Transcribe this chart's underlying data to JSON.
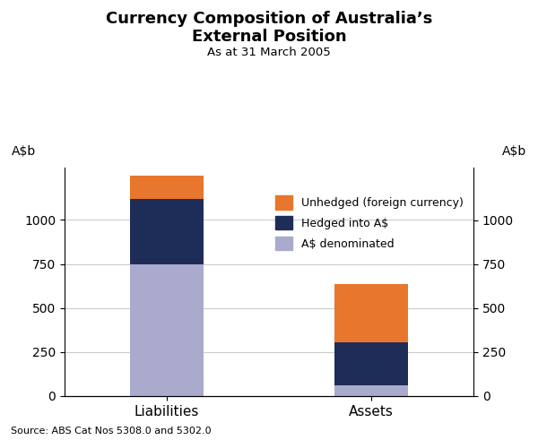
{
  "categories": [
    "Liabilities",
    "Assets"
  ],
  "aud_denominated": [
    750,
    60
  ],
  "hedged": [
    370,
    245
  ],
  "unhedged": [
    130,
    330
  ],
  "colors": {
    "aud_denominated": "#aaaacc",
    "hedged": "#1e2d58",
    "unhedged": "#e8762c"
  },
  "legend_labels": [
    "Unhedged (foreign currency)",
    "Hedged into A$",
    "A$ denominated"
  ],
  "title_line1": "Currency Composition of Australia’s",
  "title_line2": "External Position",
  "subtitle": "As at 31 March 2005",
  "ylabel_left": "A$b",
  "ylabel_right": "A$b",
  "yticks": [
    0,
    250,
    500,
    750,
    1000
  ],
  "ylim": [
    0,
    1300
  ],
  "source": "Source: ABS Cat Nos 5308.0 and 5302.0",
  "bar_width": 0.18,
  "bar_positions": [
    0.25,
    0.75
  ],
  "xlim": [
    0,
    1.0
  ]
}
